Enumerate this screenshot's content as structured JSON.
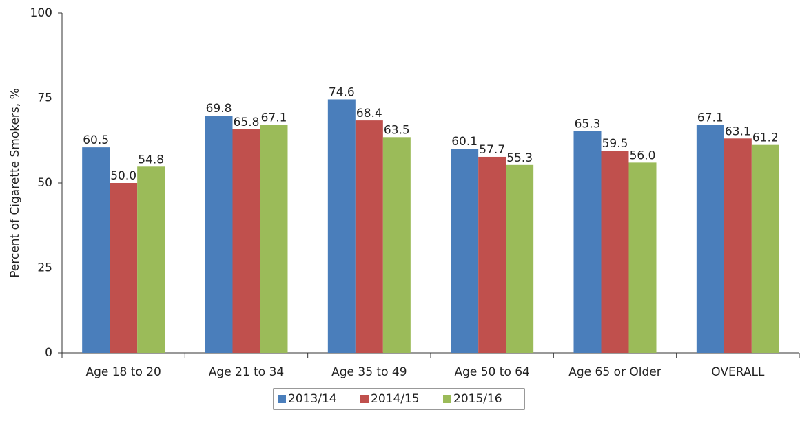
{
  "chart_data": {
    "type": "bar",
    "y_label": "Percent of Cigarette Smokers, %",
    "categories": [
      "Age 18 to 20",
      "Age 21 to 34",
      "Age 35 to 49",
      "Age 50 to 64",
      "Age 65 or Older",
      "OVERALL"
    ],
    "series": [
      {
        "name": "2013/14",
        "color": "#4a7ebb",
        "values": [
          60.5,
          69.8,
          74.6,
          60.1,
          65.3,
          67.1
        ],
        "value_labels": [
          "60.5",
          "69.8",
          "74.6",
          "60.1",
          "65.3",
          "67.1"
        ]
      },
      {
        "name": "2014/15",
        "color": "#c0504d",
        "values": [
          50,
          65.8,
          68.4,
          57.7,
          59.5,
          63.1
        ],
        "value_labels": [
          "50.0",
          "65.8",
          "68.4",
          "57.7",
          "59.5",
          "63.1"
        ]
      },
      {
        "name": "2015/16",
        "color": "#9bbb59",
        "values": [
          54.8,
          67.1,
          63.5,
          55.3,
          56,
          61.2
        ],
        "value_labels": [
          "54.8",
          "67.1",
          "63.5",
          "55.3",
          "56.0",
          "61.2"
        ]
      }
    ],
    "ylim": [
      0,
      100
    ],
    "yticks": [
      0,
      25,
      50,
      75,
      100
    ],
    "grid": false,
    "legend": "bottom"
  }
}
